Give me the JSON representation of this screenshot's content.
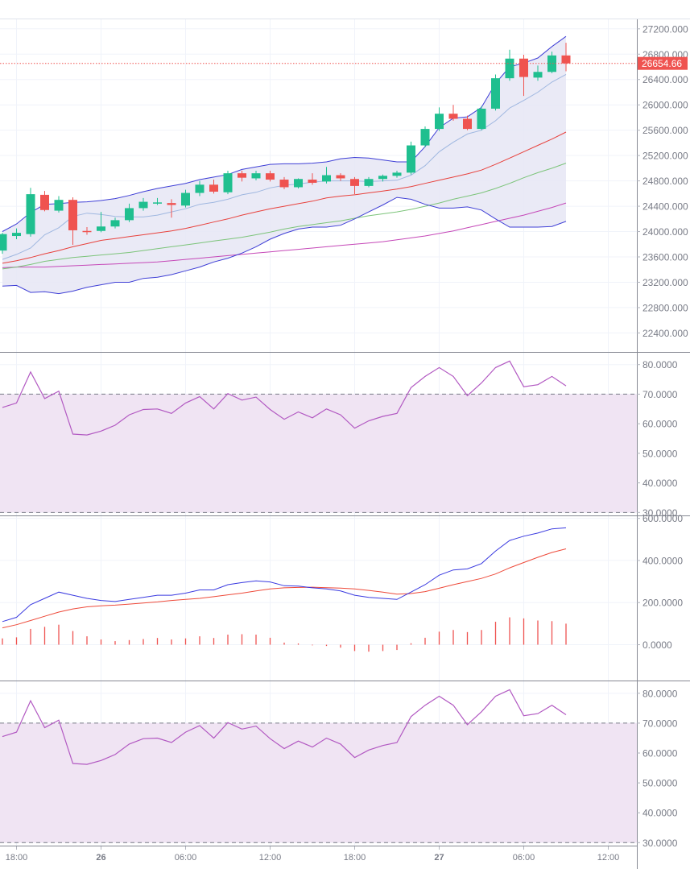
{
  "colors": {
    "up": "#26a69a",
    "up_fill": "#1fbf8f",
    "down": "#ef5350",
    "bb_band": "#3f3fd6",
    "bb_fill": "#e6e6f4",
    "bb_basis": "#9fb7e0",
    "ma_red": "#e8413c",
    "ma_green": "#7cc47a",
    "ma_purple": "#c548b8",
    "rsi_line": "#b259c2",
    "rsi_fill": "#f0e4f3",
    "macd_line": "#3a3ae0",
    "signal_line": "#ee4a3a",
    "hist": "#ef5350",
    "grid": "#f0f3fa",
    "axis_text": "#787b86",
    "price_label_bg": "#ef5350"
  },
  "chart_data": [
    {
      "type": "candlestick",
      "name": "price-pane",
      "ylim": [
        22100,
        27350
      ],
      "ticks": [
        {
          "value": 27200,
          "label": "27200.000"
        },
        {
          "value": 26800,
          "label": "26800.000"
        },
        {
          "value": 26400,
          "label": "26400.000"
        },
        {
          "value": 26000,
          "label": "26000.000"
        },
        {
          "value": 25600,
          "label": "25600.000"
        },
        {
          "value": 25200,
          "label": "25200.000"
        },
        {
          "value": 24800,
          "label": "24800.000"
        },
        {
          "value": 24400,
          "label": "24400.000"
        },
        {
          "value": 24000,
          "label": "24000.000"
        },
        {
          "value": 23600,
          "label": "23600.000"
        },
        {
          "value": 23200,
          "label": "23200.000"
        },
        {
          "value": 22800,
          "label": "22800.000"
        },
        {
          "value": 22400,
          "label": "22400.000"
        }
      ],
      "last_price": {
        "value": 26654.66,
        "label": "26654.66"
      },
      "candles": [
        {
          "o": 23700,
          "h": 23980,
          "l": 23650,
          "c": 23960
        },
        {
          "o": 23930,
          "h": 24050,
          "l": 23880,
          "c": 23980
        },
        {
          "o": 23960,
          "h": 24690,
          "l": 23920,
          "c": 24590
        },
        {
          "o": 24580,
          "h": 24640,
          "l": 24320,
          "c": 24340
        },
        {
          "o": 24330,
          "h": 24560,
          "l": 24300,
          "c": 24500
        },
        {
          "o": 24500,
          "h": 24540,
          "l": 23790,
          "c": 24020
        },
        {
          "o": 24010,
          "h": 24070,
          "l": 23950,
          "c": 24000
        },
        {
          "o": 24010,
          "h": 24310,
          "l": 23990,
          "c": 24080
        },
        {
          "o": 24080,
          "h": 24220,
          "l": 24050,
          "c": 24180
        },
        {
          "o": 24180,
          "h": 24440,
          "l": 24150,
          "c": 24370
        },
        {
          "o": 24370,
          "h": 24530,
          "l": 24330,
          "c": 24470
        },
        {
          "o": 24450,
          "h": 24530,
          "l": 24420,
          "c": 24460
        },
        {
          "o": 24450,
          "h": 24510,
          "l": 24220,
          "c": 24420
        },
        {
          "o": 24410,
          "h": 24660,
          "l": 24380,
          "c": 24610
        },
        {
          "o": 24610,
          "h": 24800,
          "l": 24560,
          "c": 24740
        },
        {
          "o": 24740,
          "h": 24820,
          "l": 24600,
          "c": 24630
        },
        {
          "o": 24620,
          "h": 24960,
          "l": 24590,
          "c": 24920
        },
        {
          "o": 24920,
          "h": 24960,
          "l": 24790,
          "c": 24850
        },
        {
          "o": 24840,
          "h": 24960,
          "l": 24810,
          "c": 24920
        },
        {
          "o": 24920,
          "h": 24960,
          "l": 24790,
          "c": 24820
        },
        {
          "o": 24820,
          "h": 24860,
          "l": 24670,
          "c": 24700
        },
        {
          "o": 24700,
          "h": 24840,
          "l": 24680,
          "c": 24830
        },
        {
          "o": 24820,
          "h": 24920,
          "l": 24740,
          "c": 24770
        },
        {
          "o": 24790,
          "h": 25020,
          "l": 24760,
          "c": 24890
        },
        {
          "o": 24890,
          "h": 24920,
          "l": 24800,
          "c": 24840
        },
        {
          "o": 24830,
          "h": 24860,
          "l": 24590,
          "c": 24720
        },
        {
          "o": 24720,
          "h": 24860,
          "l": 24700,
          "c": 24830
        },
        {
          "o": 24830,
          "h": 24900,
          "l": 24790,
          "c": 24880
        },
        {
          "o": 24880,
          "h": 24960,
          "l": 24850,
          "c": 24930
        },
        {
          "o": 24930,
          "h": 25420,
          "l": 24900,
          "c": 25360
        },
        {
          "o": 25360,
          "h": 25660,
          "l": 25330,
          "c": 25620
        },
        {
          "o": 25620,
          "h": 25960,
          "l": 25590,
          "c": 25860
        },
        {
          "o": 25860,
          "h": 26000,
          "l": 25750,
          "c": 25780
        },
        {
          "o": 25780,
          "h": 25830,
          "l": 25600,
          "c": 25620
        },
        {
          "o": 25620,
          "h": 25980,
          "l": 25600,
          "c": 25940
        },
        {
          "o": 25940,
          "h": 26480,
          "l": 25910,
          "c": 26420
        },
        {
          "o": 26420,
          "h": 26870,
          "l": 26380,
          "c": 26730
        },
        {
          "o": 26730,
          "h": 26790,
          "l": 26140,
          "c": 26440
        },
        {
          "o": 26430,
          "h": 26620,
          "l": 26380,
          "c": 26520
        },
        {
          "o": 26520,
          "h": 26840,
          "l": 26500,
          "c": 26780
        },
        {
          "o": 26780,
          "h": 26980,
          "l": 26530,
          "c": 26654.66
        }
      ],
      "bb_upper": [
        24000,
        24120,
        24300,
        24430,
        24440,
        24460,
        24470,
        24490,
        24520,
        24570,
        24630,
        24680,
        24720,
        24760,
        24820,
        24860,
        24900,
        24980,
        25020,
        25060,
        25070,
        25070,
        25080,
        25100,
        25150,
        25170,
        25160,
        25130,
        25100,
        25100,
        25340,
        25640,
        25790,
        25810,
        25960,
        26340,
        26600,
        26660,
        26740,
        26920,
        27080
      ],
      "bb_lower": [
        23140,
        23150,
        23040,
        23050,
        23020,
        23060,
        23120,
        23160,
        23200,
        23200,
        23260,
        23280,
        23320,
        23380,
        23440,
        23520,
        23580,
        23660,
        23760,
        23880,
        23970,
        24040,
        24070,
        24070,
        24100,
        24200,
        24310,
        24420,
        24540,
        24510,
        24430,
        24370,
        24370,
        24390,
        24340,
        24200,
        24070,
        24070,
        24070,
        24080,
        24160
      ],
      "bb_basis": [
        23560,
        23640,
        23740,
        23950,
        24060,
        24240,
        24290,
        24270,
        24240,
        24230,
        24230,
        24260,
        24310,
        24360,
        24430,
        24460,
        24510,
        24580,
        24620,
        24690,
        24730,
        24750,
        24780,
        24800,
        24800,
        24800,
        24790,
        24800,
        24810,
        24890,
        25040,
        25260,
        25410,
        25540,
        25600,
        25750,
        25950,
        26070,
        26200,
        26360,
        26480
      ],
      "ma_red": [
        23500,
        23540,
        23590,
        23650,
        23700,
        23760,
        23810,
        23860,
        23890,
        23920,
        23950,
        23980,
        24010,
        24050,
        24100,
        24150,
        24200,
        24260,
        24310,
        24360,
        24400,
        24440,
        24480,
        24530,
        24560,
        24580,
        24610,
        24640,
        24670,
        24710,
        24760,
        24810,
        24860,
        24910,
        24970,
        25060,
        25160,
        25260,
        25360,
        25460,
        25570
      ],
      "ma_green": [
        23410,
        23440,
        23480,
        23530,
        23560,
        23590,
        23610,
        23630,
        23650,
        23670,
        23700,
        23730,
        23760,
        23790,
        23820,
        23850,
        23880,
        23910,
        23950,
        23990,
        24040,
        24080,
        24110,
        24140,
        24170,
        24210,
        24250,
        24280,
        24310,
        24350,
        24400,
        24450,
        24510,
        24560,
        24610,
        24680,
        24760,
        24850,
        24930,
        25000,
        25080
      ],
      "ma_purple": [
        23430,
        23440,
        23440,
        23440,
        23450,
        23460,
        23470,
        23480,
        23490,
        23500,
        23510,
        23520,
        23540,
        23560,
        23580,
        23600,
        23620,
        23640,
        23660,
        23680,
        23700,
        23720,
        23740,
        23760,
        23780,
        23800,
        23820,
        23840,
        23870,
        23900,
        23930,
        23970,
        24010,
        24060,
        24110,
        24160,
        24210,
        24260,
        24320,
        24380,
        24450
      ]
    },
    {
      "type": "line",
      "name": "rsi-pane-1",
      "ylim": [
        29,
        84
      ],
      "ticks": [
        {
          "value": 80,
          "label": "80.0000"
        },
        {
          "value": 70,
          "label": "70.0000"
        },
        {
          "value": 60,
          "label": "60.0000"
        },
        {
          "value": 50,
          "label": "50.0000"
        },
        {
          "value": 40,
          "label": "40.0000"
        },
        {
          "value": 30,
          "label": "30.0000"
        }
      ],
      "band": [
        30,
        70
      ],
      "values": [
        65.5,
        67,
        77.5,
        68.5,
        71,
        56.5,
        56.2,
        57.5,
        59.5,
        63,
        64.8,
        65,
        63.5,
        67,
        69.2,
        65,
        70.2,
        68,
        69,
        64.8,
        61.5,
        64,
        62,
        65,
        63,
        58.5,
        61,
        62.5,
        63.5,
        72.2,
        76,
        79,
        76,
        69.5,
        73.8,
        79,
        81.2,
        72.5,
        73.2,
        76,
        72.8
      ]
    },
    {
      "type": "line",
      "name": "macd-pane",
      "ylim": [
        -170,
        610
      ],
      "ticks": [
        {
          "value": 600,
          "label": "600.0000"
        },
        {
          "value": 400,
          "label": "400.0000"
        },
        {
          "value": 200,
          "label": "200.0000"
        },
        {
          "value": 0,
          "label": "0.0000"
        }
      ],
      "macd": [
        110,
        130,
        190,
        220,
        250,
        235,
        220,
        210,
        205,
        215,
        225,
        235,
        235,
        245,
        260,
        260,
        285,
        295,
        303,
        298,
        280,
        278,
        270,
        265,
        255,
        235,
        225,
        220,
        215,
        250,
        285,
        330,
        355,
        360,
        385,
        445,
        495,
        515,
        530,
        550,
        555
      ],
      "signal": [
        80,
        95,
        115,
        135,
        155,
        170,
        180,
        185,
        188,
        193,
        198,
        203,
        210,
        215,
        220,
        228,
        237,
        245,
        255,
        265,
        270,
        272,
        273,
        271,
        269,
        265,
        258,
        250,
        240,
        243,
        252,
        268,
        285,
        300,
        315,
        336,
        365,
        390,
        415,
        438,
        455
      ],
      "histogram": [
        30,
        35,
        75,
        85,
        95,
        65,
        40,
        25,
        17,
        22,
        27,
        32,
        25,
        30,
        40,
        32,
        48,
        50,
        48,
        33,
        10,
        6,
        -3,
        -6,
        -14,
        -30,
        -33,
        -30,
        -25,
        7,
        33,
        62,
        70,
        60,
        70,
        109,
        130,
        125,
        115,
        112,
        100
      ]
    },
    {
      "type": "line",
      "name": "rsi-pane-2",
      "ylim": [
        29,
        84
      ],
      "ticks": [
        {
          "value": 80,
          "label": "80.0000"
        },
        {
          "value": 70,
          "label": "70.0000"
        },
        {
          "value": 60,
          "label": "60.0000"
        },
        {
          "value": 50,
          "label": "50.0000"
        },
        {
          "value": 40,
          "label": "40.0000"
        },
        {
          "value": 30,
          "label": "30.0000"
        }
      ],
      "band": [
        30,
        70
      ],
      "values": [
        65.5,
        67,
        77.5,
        68.5,
        71,
        56.5,
        56.2,
        57.5,
        59.5,
        63,
        64.8,
        65,
        63.5,
        67,
        69.2,
        65,
        70.2,
        68,
        69,
        64.8,
        61.5,
        64,
        62,
        65,
        63,
        58.5,
        61,
        62.5,
        63.5,
        72.2,
        76,
        79,
        76,
        69.5,
        73.8,
        79,
        81.2,
        72.5,
        73.2,
        76,
        72.8
      ]
    }
  ],
  "time_axis": {
    "labels": [
      {
        "index": 1,
        "text": "18:00",
        "bold": false
      },
      {
        "index": 7,
        "text": "26",
        "bold": true
      },
      {
        "index": 13,
        "text": "06:00",
        "bold": false
      },
      {
        "index": 19,
        "text": "12:00",
        "bold": false
      },
      {
        "index": 25,
        "text": "18:00",
        "bold": false
      },
      {
        "index": 31,
        "text": "27",
        "bold": true
      },
      {
        "index": 37,
        "text": "06:00",
        "bold": false
      },
      {
        "index": 43,
        "text": "12:00",
        "bold": false
      }
    ]
  }
}
